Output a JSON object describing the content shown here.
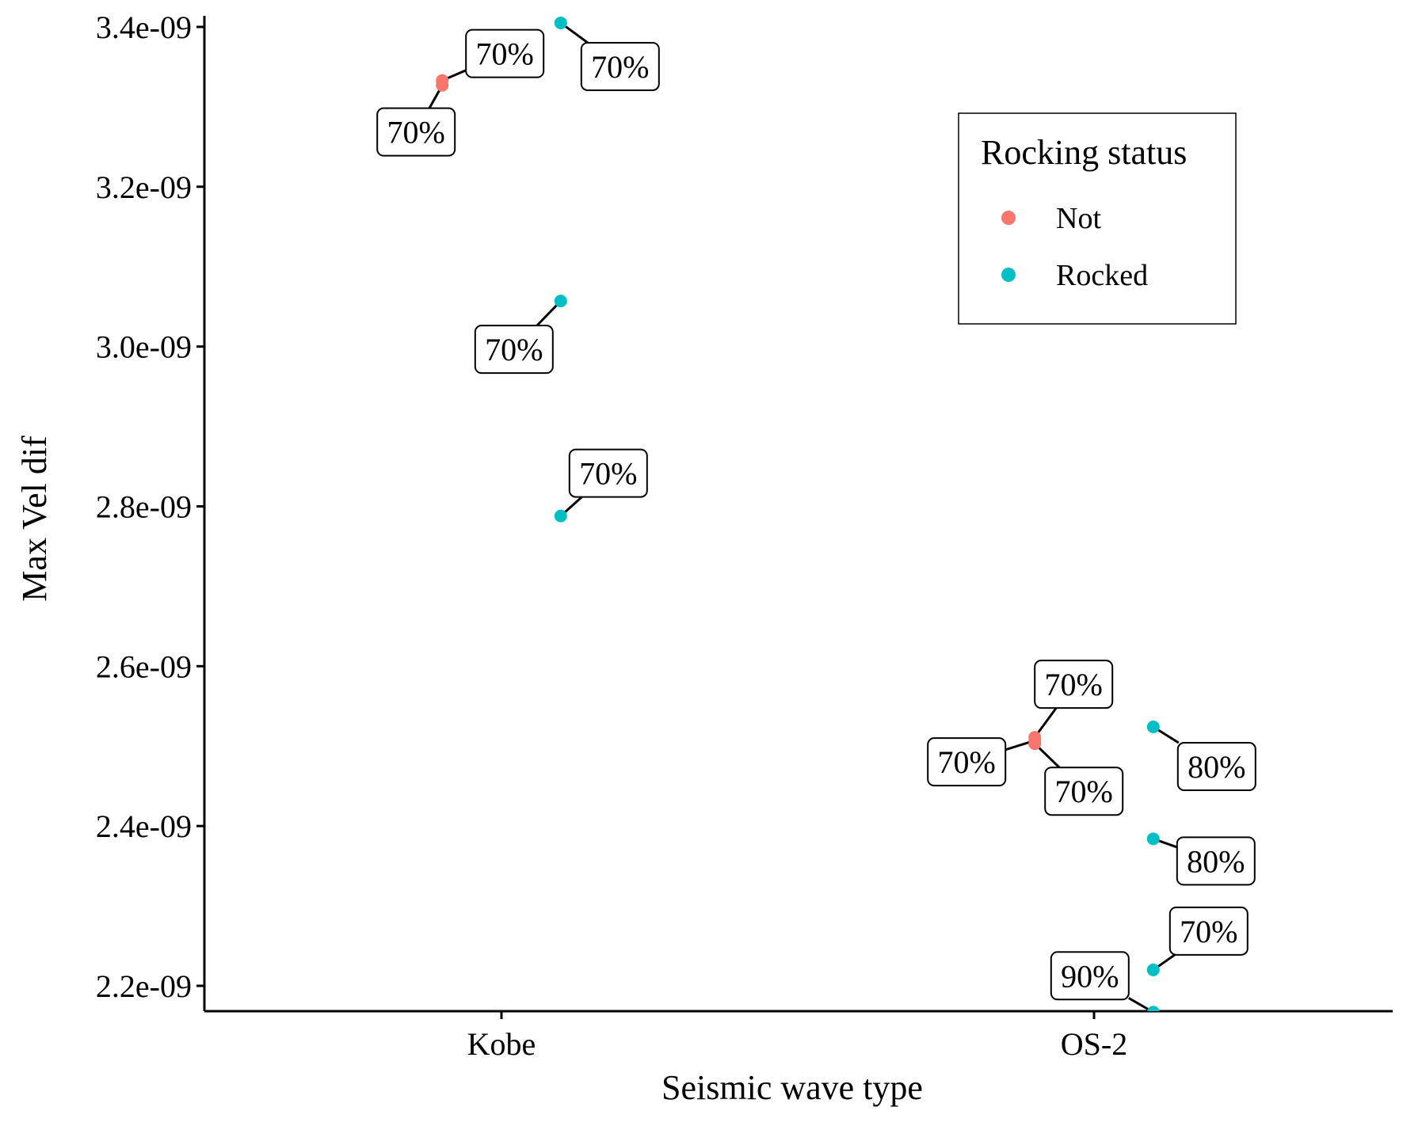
{
  "chart_data": {
    "type": "scatter",
    "title": "",
    "xlabel": "Seismic wave type",
    "ylabel": "Max Vel dif",
    "categories": [
      "Kobe",
      "OS-2"
    ],
    "ylim": [
      2.167e-09,
      3.405e-09
    ],
    "y_ticks": [
      2.2e-09,
      2.4e-09,
      2.6e-09,
      2.8e-09,
      3e-09,
      3.2e-09,
      3.4e-09
    ],
    "y_tick_labels": [
      "2.2e-09",
      "2.4e-09",
      "2.6e-09",
      "2.8e-09",
      "3.0e-09",
      "3.2e-09",
      "3.4e-09"
    ],
    "grid": false,
    "legend": {
      "title": "Rocking status",
      "placement": "top-right",
      "entries": [
        {
          "label": "Not",
          "color": "#F8766D"
        },
        {
          "label": "Rocked",
          "color": "#00BFC4"
        }
      ]
    },
    "series": [
      {
        "name": "Not",
        "color": "#F8766D",
        "points": [
          {
            "category": "Kobe",
            "jitter": -0.1,
            "y": 3.327e-09,
            "label": "70%"
          },
          {
            "category": "Kobe",
            "jitter": -0.1,
            "y": 3.333e-09,
            "label": "70%"
          },
          {
            "category": "OS-2",
            "jitter": -0.1,
            "y": 2.507e-09,
            "label": "70%"
          },
          {
            "category": "OS-2",
            "jitter": -0.1,
            "y": 2.511e-09,
            "label": "70%"
          },
          {
            "category": "OS-2",
            "jitter": -0.1,
            "y": 2.503e-09,
            "label": "70%"
          }
        ]
      },
      {
        "name": "Rocked",
        "color": "#00BFC4",
        "points": [
          {
            "category": "Kobe",
            "jitter": 0.1,
            "y": 3.405e-09,
            "label": "70%"
          },
          {
            "category": "Kobe",
            "jitter": 0.1,
            "y": 3.057e-09,
            "label": "70%"
          },
          {
            "category": "Kobe",
            "jitter": 0.1,
            "y": 2.788e-09,
            "label": "70%"
          },
          {
            "category": "OS-2",
            "jitter": 0.1,
            "y": 2.524e-09,
            "label": "80%"
          },
          {
            "category": "OS-2",
            "jitter": 0.1,
            "y": 2.384e-09,
            "label": "80%"
          },
          {
            "category": "OS-2",
            "jitter": 0.1,
            "y": 2.22e-09,
            "label": "70%"
          },
          {
            "category": "OS-2",
            "jitter": 0.1,
            "y": 2.167e-09,
            "label": "90%"
          }
        ]
      }
    ]
  }
}
